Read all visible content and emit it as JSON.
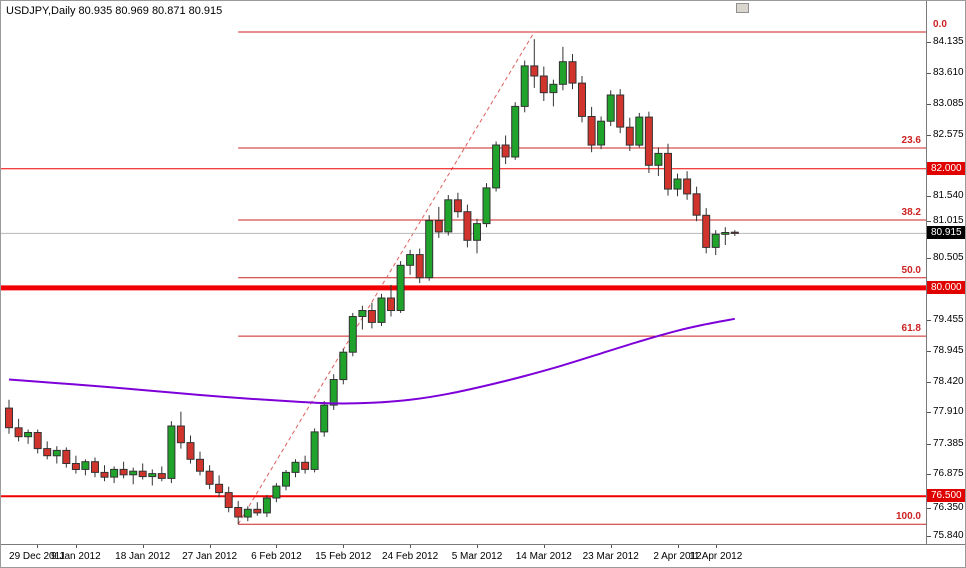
{
  "title": "USDJPY,Daily 80.935 80.969 80.871 80.915",
  "colors": {
    "bull": "#1fa32b",
    "bear": "#d0342c",
    "candle_border": "#333333",
    "wick": "#333333",
    "fib_line": "#cc2222",
    "fib_trend": "#e06060",
    "sr_line": "#f00000",
    "ma_line": "#7d00d8",
    "current_price_line": "#b8b8b8",
    "sr_badge_bg": "#e00000",
    "current_badge_bg": "#000000"
  },
  "chart_data": {
    "type": "candlestick",
    "symbol": "USDJPY",
    "timeframe": "Daily",
    "ohlc": {
      "open": "80.935",
      "high": "80.969",
      "low": "80.871",
      "close": "80.915"
    },
    "price_range": {
      "top": 84.82,
      "bottom": 75.697
    },
    "y_axis_labels": [
      "84.135",
      "83.610",
      "83.085",
      "82.575",
      "81.540",
      "81.015",
      "80.505",
      "79.455",
      "78.945",
      "78.420",
      "77.910",
      "77.385",
      "76.875",
      "76.350",
      "75.840"
    ],
    "x_axis_labels": [
      "29 Dec 2011",
      "9 Jan 2012",
      "18 Jan 2012",
      "27 Jan 2012",
      "6 Feb 2012",
      "15 Feb 2012",
      "24 Feb 2012",
      "5 Mar 2012",
      "14 Mar 2012",
      "23 Mar 2012",
      "2 Apr 2012",
      "11 Apr 2012"
    ],
    "candles": [
      [
        77.98,
        78.12,
        77.55,
        77.65
      ],
      [
        77.65,
        77.8,
        77.42,
        77.5
      ],
      [
        77.5,
        77.62,
        77.38,
        77.57
      ],
      [
        77.57,
        77.62,
        77.22,
        77.3
      ],
      [
        77.3,
        77.42,
        77.12,
        77.18
      ],
      [
        77.18,
        77.34,
        77.05,
        77.27
      ],
      [
        77.27,
        77.32,
        76.98,
        77.05
      ],
      [
        77.05,
        77.18,
        76.88,
        76.95
      ],
      [
        76.95,
        77.12,
        76.85,
        77.08
      ],
      [
        77.08,
        77.15,
        76.82,
        76.9
      ],
      [
        76.9,
        77.02,
        76.75,
        76.82
      ],
      [
        76.82,
        77.0,
        76.72,
        76.95
      ],
      [
        76.95,
        77.08,
        76.8,
        76.86
      ],
      [
        76.86,
        76.98,
        76.7,
        76.92
      ],
      [
        76.92,
        77.05,
        76.78,
        76.83
      ],
      [
        76.83,
        76.95,
        76.68,
        76.88
      ],
      [
        76.88,
        77.0,
        76.75,
        76.8
      ],
      [
        76.8,
        77.76,
        76.72,
        77.68
      ],
      [
        77.68,
        77.92,
        77.3,
        77.4
      ],
      [
        77.4,
        77.52,
        77.05,
        77.12
      ],
      [
        77.12,
        77.25,
        76.85,
        76.92
      ],
      [
        76.92,
        77.02,
        76.62,
        76.7
      ],
      [
        76.7,
        76.85,
        76.48,
        76.56
      ],
      [
        76.56,
        76.66,
        76.23,
        76.31
      ],
      [
        76.31,
        76.42,
        76.03,
        76.15
      ],
      [
        76.15,
        76.33,
        76.08,
        76.28
      ],
      [
        76.28,
        76.4,
        76.17,
        76.22
      ],
      [
        76.22,
        76.52,
        76.15,
        76.47
      ],
      [
        76.47,
        76.72,
        76.4,
        76.67
      ],
      [
        76.67,
        76.94,
        76.6,
        76.9
      ],
      [
        76.9,
        77.12,
        76.82,
        77.07
      ],
      [
        77.07,
        77.18,
        76.88,
        76.95
      ],
      [
        76.95,
        77.64,
        76.9,
        77.58
      ],
      [
        77.58,
        78.1,
        77.5,
        78.03
      ],
      [
        78.03,
        78.55,
        77.95,
        78.46
      ],
      [
        78.46,
        78.98,
        78.38,
        78.92
      ],
      [
        78.92,
        79.58,
        78.85,
        79.52
      ],
      [
        79.52,
        79.7,
        79.3,
        79.62
      ],
      [
        79.62,
        79.75,
        79.32,
        79.42
      ],
      [
        79.42,
        79.9,
        79.36,
        79.83
      ],
      [
        79.83,
        80.05,
        79.52,
        79.62
      ],
      [
        79.62,
        80.45,
        79.58,
        80.38
      ],
      [
        80.38,
        80.64,
        80.22,
        80.56
      ],
      [
        80.56,
        80.66,
        80.08,
        80.17
      ],
      [
        80.17,
        81.22,
        80.12,
        81.13
      ],
      [
        81.13,
        81.36,
        80.84,
        80.94
      ],
      [
        80.94,
        81.56,
        80.88,
        81.48
      ],
      [
        81.48,
        81.6,
        81.18,
        81.28
      ],
      [
        81.28,
        81.4,
        80.68,
        80.8
      ],
      [
        80.8,
        81.16,
        80.58,
        81.08
      ],
      [
        81.08,
        81.76,
        81.02,
        81.68
      ],
      [
        81.68,
        82.46,
        81.62,
        82.4
      ],
      [
        82.4,
        82.56,
        82.08,
        82.2
      ],
      [
        82.2,
        83.12,
        82.15,
        83.05
      ],
      [
        83.05,
        83.82,
        82.95,
        83.73
      ],
      [
        83.73,
        84.18,
        83.36,
        83.56
      ],
      [
        83.56,
        83.72,
        83.14,
        83.28
      ],
      [
        83.28,
        83.5,
        83.05,
        83.42
      ],
      [
        83.42,
        84.05,
        83.32,
        83.8
      ],
      [
        83.8,
        83.93,
        83.34,
        83.44
      ],
      [
        83.44,
        83.56,
        82.78,
        82.88
      ],
      [
        82.88,
        83.04,
        82.28,
        82.4
      ],
      [
        82.4,
        82.88,
        82.33,
        82.8
      ],
      [
        82.8,
        83.32,
        82.72,
        83.24
      ],
      [
        83.24,
        83.34,
        82.6,
        82.7
      ],
      [
        82.7,
        82.86,
        82.3,
        82.4
      ],
      [
        82.4,
        82.94,
        82.36,
        82.87
      ],
      [
        82.87,
        82.96,
        81.93,
        82.06
      ],
      [
        82.06,
        82.36,
        81.88,
        82.26
      ],
      [
        82.26,
        82.42,
        81.55,
        81.66
      ],
      [
        81.66,
        81.92,
        81.54,
        81.83
      ],
      [
        81.83,
        81.96,
        81.48,
        81.58
      ],
      [
        81.58,
        81.7,
        81.12,
        81.22
      ],
      [
        81.22,
        81.34,
        80.58,
        80.68
      ],
      [
        80.68,
        80.97,
        80.55,
        80.9
      ],
      [
        80.9,
        81.02,
        80.72,
        80.93
      ],
      [
        80.935,
        80.969,
        80.871,
        80.915
      ]
    ],
    "moving_average": {
      "points": [
        [
          0,
          78.46
        ],
        [
          5,
          78.4
        ],
        [
          10,
          78.34
        ],
        [
          15,
          78.27
        ],
        [
          20,
          78.2
        ],
        [
          25,
          78.14
        ],
        [
          30,
          78.09
        ],
        [
          34,
          78.06
        ],
        [
          38,
          78.07
        ],
        [
          42,
          78.12
        ],
        [
          46,
          78.22
        ],
        [
          50,
          78.36
        ],
        [
          54,
          78.52
        ],
        [
          58,
          78.7
        ],
        [
          62,
          78.9
        ],
        [
          66,
          79.1
        ],
        [
          70,
          79.28
        ],
        [
          73,
          79.39
        ],
        [
          76,
          79.48
        ]
      ]
    },
    "fibonacci": {
      "start": {
        "index": 24,
        "price": 76.03
      },
      "end": {
        "index": 55,
        "price": 84.3
      },
      "levels": [
        {
          "label": "0.0",
          "ratio": 0,
          "price": 84.3
        },
        {
          "label": "23.6",
          "ratio": 23.6,
          "price": 82.35
        },
        {
          "label": "38.2",
          "ratio": 38.2,
          "price": 81.14
        },
        {
          "label": "50.0",
          "ratio": 50,
          "price": 80.17
        },
        {
          "label": "61.8",
          "ratio": 61.8,
          "price": 79.19
        },
        {
          "label": "100.0",
          "ratio": 100,
          "price": 76.03
        }
      ]
    },
    "horizontal_lines": [
      {
        "price": 82.0,
        "label": "82.000",
        "weight": 1
      },
      {
        "price": 80.0,
        "label": "80.000",
        "weight": 5
      },
      {
        "price": 76.5,
        "label": "76.500",
        "weight": 2
      }
    ],
    "current_price": {
      "value": 80.915,
      "label": "80.915"
    }
  }
}
